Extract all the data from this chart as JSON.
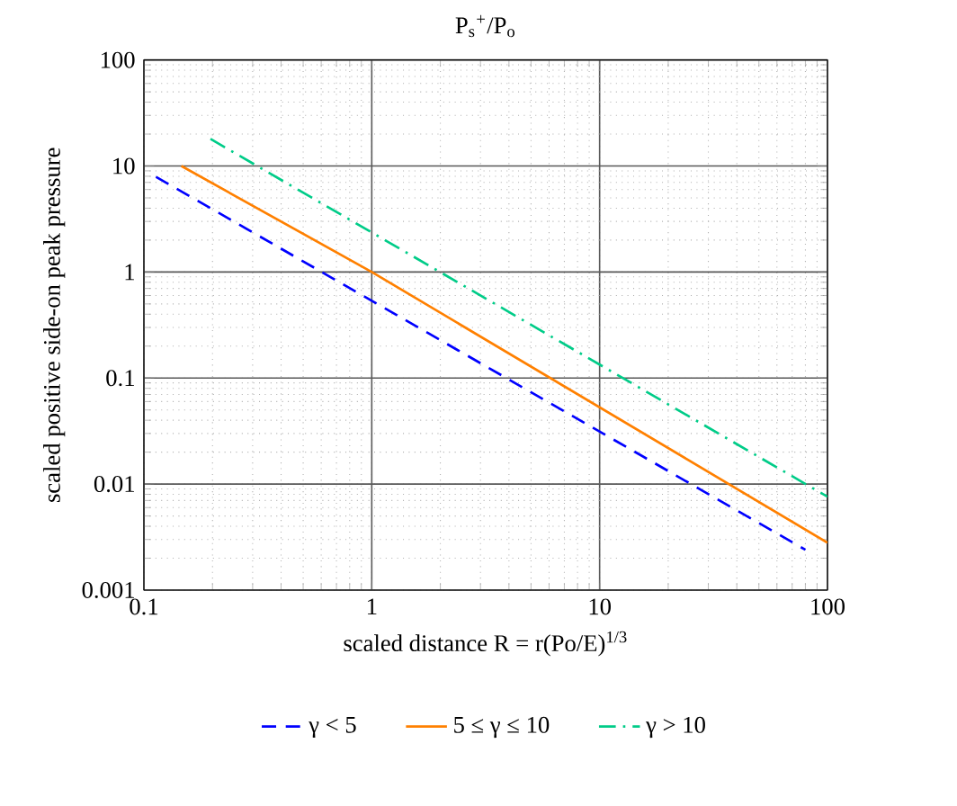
{
  "chart_data": {
    "type": "line",
    "title": "P$_{s}$$^{+}$/P$_{o}$",
    "xlabel": "scaled distance R = r(Po/E)$^{1/3}$",
    "ylabel": "scaled positive side-on peak pressure",
    "log": "xy",
    "xlim": [
      0.1,
      100
    ],
    "ylim": [
      0.001,
      100
    ],
    "xticks": [
      0.1,
      1,
      10,
      100
    ],
    "yticks": [
      0.001,
      0.01,
      0.1,
      1,
      10,
      100
    ],
    "grid": true,
    "legend": "bottom",
    "marker": "none",
    "series": [
      {
        "name": "γ < 5",
        "color": "#0000ff",
        "line_style": "dashed",
        "x": [
          0.113,
          80
        ],
        "values": [
          7.9,
          0.0024
        ]
      },
      {
        "name": "5 ≤ γ ≤ 10",
        "color": "#ff8000",
        "line_style": "solid",
        "x": [
          0.146,
          1,
          100
        ],
        "values": [
          10,
          1.0,
          0.0028
        ]
      },
      {
        "name": "γ > 10",
        "color": "#00cc88",
        "line_style": "dashdot",
        "x": [
          0.196,
          100
        ],
        "values": [
          18,
          0.0076
        ]
      }
    ]
  }
}
